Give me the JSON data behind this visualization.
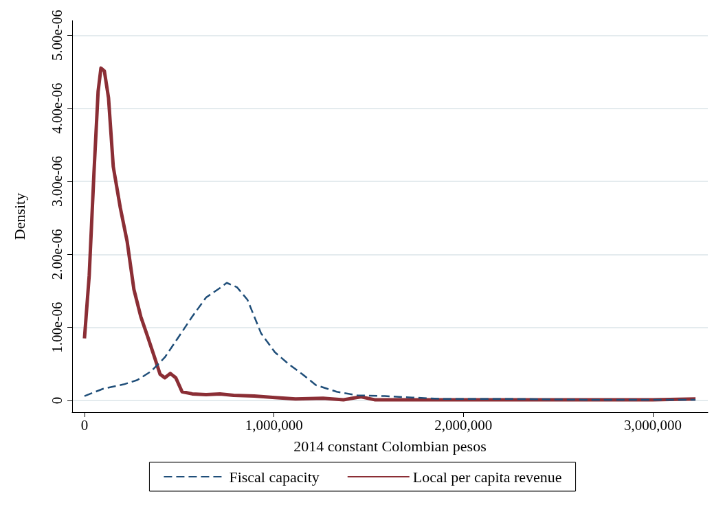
{
  "chart_data": {
    "type": "line",
    "xlabel": "2014 constant Colombian pesos",
    "ylabel": "Density",
    "xlim": [
      -65000,
      3290000
    ],
    "ylim": [
      -1.6e-07,
      5.2e-06
    ],
    "xticks": [
      {
        "value": 0,
        "label": "0"
      },
      {
        "value": 1000000,
        "label": "1,000,000"
      },
      {
        "value": 2000000,
        "label": "2,000,000"
      },
      {
        "value": 3000000,
        "label": "3,000,000"
      }
    ],
    "yticks": [
      {
        "value": 0,
        "label": "0"
      },
      {
        "value": 1e-06,
        "label": "1.00e-06"
      },
      {
        "value": 2e-06,
        "label": "2.00e-06"
      },
      {
        "value": 3e-06,
        "label": "3.00e-06"
      },
      {
        "value": 4e-06,
        "label": "4.00e-06"
      },
      {
        "value": 5e-06,
        "label": "5.00e-06"
      }
    ],
    "grid": "y",
    "legend": "bottom",
    "marker": "none",
    "series": [
      {
        "name": "Fiscal capacity",
        "color": "#1f4e79",
        "line_style": "dashed",
        "x": [
          0,
          98000,
          207000,
          279000,
          352000,
          424000,
          497000,
          569000,
          642000,
          715000,
          751000,
          805000,
          860000,
          932000,
          1005000,
          1077000,
          1150000,
          1222000,
          1331000,
          1440000,
          1585000,
          1730000,
          1911000,
          2274000,
          2637000,
          3000000,
          3225000
        ],
        "values": [
          6e-08,
          1.6e-07,
          2.2e-07,
          2.8e-07,
          4e-07,
          5.9e-07,
          8.7e-07,
          1.15e-06,
          1.41e-06,
          1.54e-06,
          1.61e-06,
          1.55e-06,
          1.38e-06,
          9.2e-07,
          6.6e-07,
          5e-07,
          3.6e-07,
          2.1e-07,
          1.2e-07,
          7e-08,
          6e-08,
          4e-08,
          2e-08,
          2e-08,
          1e-08,
          1e-08,
          1e-08
        ]
      },
      {
        "name": "Local per capita revenue",
        "color": "#8b2e35",
        "line_style": "solid",
        "x": [
          0,
          25000,
          50000,
          72000,
          87000,
          105000,
          127000,
          152000,
          189000,
          225000,
          261000,
          297000,
          334000,
          370000,
          399000,
          424000,
          453000,
          482000,
          515000,
          569000,
          642000,
          715000,
          787000,
          896000,
          1005000,
          1114000,
          1259000,
          1367000,
          1458000,
          1531000,
          1730000,
          2020000,
          2274000,
          2637000,
          3000000,
          3225000
        ],
        "values": [
          8.5e-07,
          1.71e-06,
          3.11e-06,
          4.23e-06,
          4.55e-06,
          4.51e-06,
          4.14e-06,
          3.2e-06,
          2.64e-06,
          2.18e-06,
          1.52e-06,
          1.15e-06,
          8.7e-07,
          5.9e-07,
          3.6e-07,
          3.1e-07,
          3.7e-07,
          3.1e-07,
          1.2e-07,
          9e-08,
          8e-08,
          9e-08,
          7e-08,
          6e-08,
          4e-08,
          2e-08,
          3e-08,
          1e-08,
          5e-08,
          1e-08,
          1e-08,
          1e-08,
          1e-08,
          1e-08,
          1e-08,
          2e-08
        ]
      }
    ]
  }
}
